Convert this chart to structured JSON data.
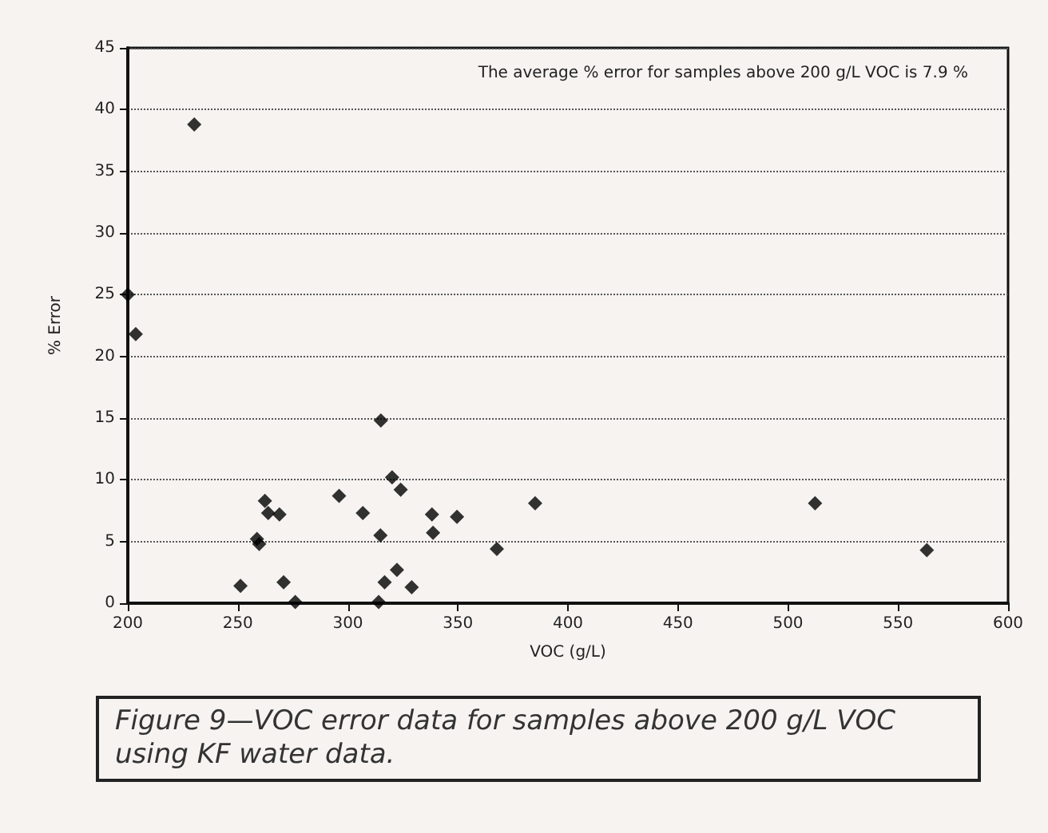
{
  "chart_data": {
    "type": "scatter",
    "xlabel": "VOC (g/L)",
    "ylabel": "% Error",
    "annotations": [
      "The average % error for samples above 200 g/L VOC is 7.9 %",
      "Figure 9—VOC error data for samples above 200 g/L VOC using KF water data."
    ],
    "x": [
      230.2,
      203.6,
      200,
      251.2,
      258.7,
      259.7,
      262.3,
      263.8,
      268.9,
      270.8,
      276.1,
      296,
      306.8,
      314.8,
      315,
      314,
      316.7,
      322.3,
      320.1,
      324,
      329,
      338.2,
      338.7,
      349.6,
      367.7,
      385.1,
      512.3,
      563.1
    ],
    "values": [
      38.8,
      21.8,
      25,
      1.4,
      5.2,
      4.8,
      8.3,
      7.3,
      7.2,
      1.7,
      0.1,
      8.7,
      7.3,
      5.5,
      14.8,
      0.1,
      1.7,
      2.7,
      10.2,
      9.2,
      1.3,
      7.2,
      5.7,
      7.0,
      4.4,
      8.1,
      8.1,
      4.3
    ],
    "color": "#000000",
    "marker": "diamond",
    "xlim": [
      200,
      600
    ],
    "xticks": [
      200,
      250,
      300,
      350,
      400,
      450,
      500,
      550,
      600
    ],
    "ylim": [
      0,
      45
    ],
    "yticks": [
      0,
      5,
      10,
      15,
      20,
      25,
      30,
      35,
      40,
      45
    ],
    "grid": "y"
  }
}
